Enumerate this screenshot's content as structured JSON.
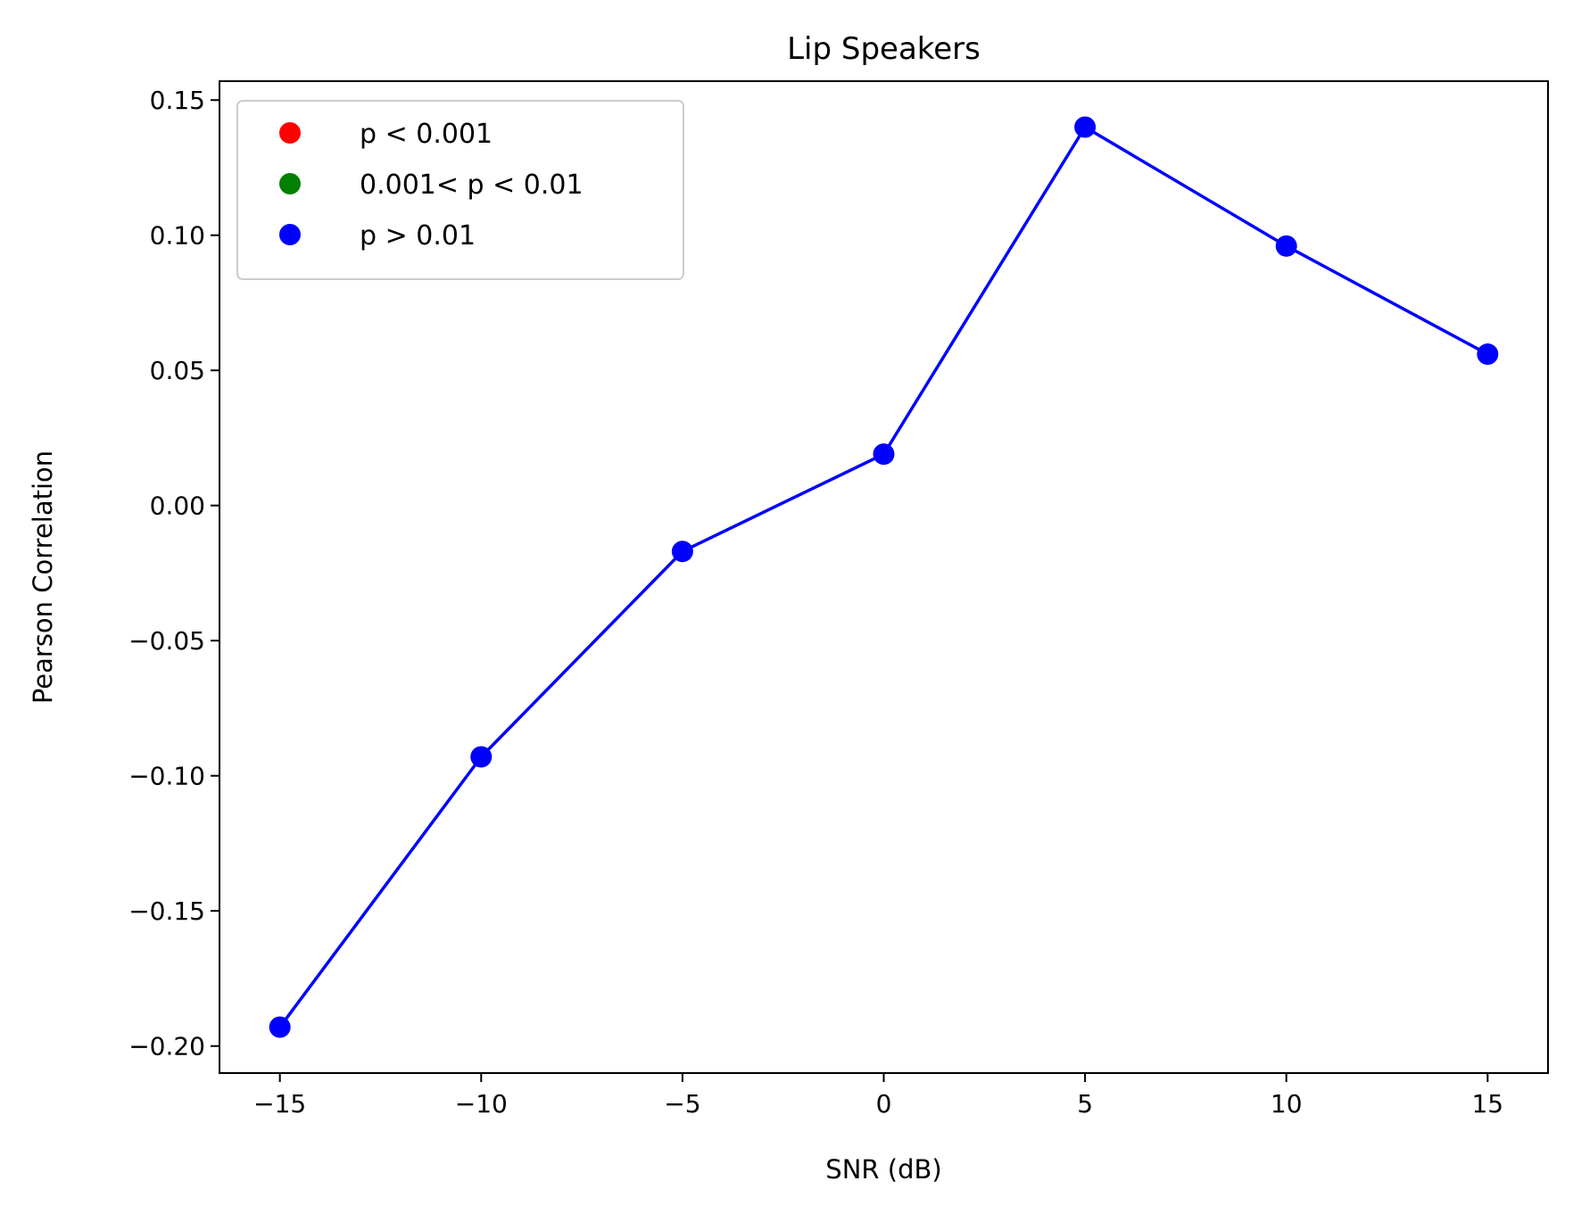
{
  "chart_data": {
    "type": "line",
    "title": "Lip Speakers",
    "xlabel": "SNR (dB)",
    "ylabel": "Pearson Correlation",
    "xlim": [
      -16.5,
      16.5
    ],
    "ylim": [
      -0.21,
      0.157
    ],
    "x_ticks": [
      -15,
      -10,
      -5,
      0,
      5,
      10,
      15
    ],
    "x_tick_labels": [
      "−15",
      "−10",
      "−5",
      "0",
      "5",
      "10",
      "15"
    ],
    "y_ticks": [
      0.15,
      0.1,
      0.05,
      0.0,
      -0.05,
      -0.1,
      -0.15,
      -0.2
    ],
    "y_tick_labels": [
      "0.15",
      "0.10",
      "0.05",
      "0.00",
      "−0.05",
      "−0.10",
      "−0.15",
      "−0.20"
    ],
    "grid": false,
    "legend_position": "top-left",
    "legend": [
      {
        "label": "p < 0.001",
        "color": "#ff0000"
      },
      {
        "label": "0.001< p < 0.01",
        "color": "#008000"
      },
      {
        "label": "p > 0.01",
        "color": "#0000ff"
      }
    ],
    "series": [
      {
        "color": "#0000ff",
        "x": [
          -15,
          -10,
          -5,
          0,
          5,
          10,
          15
        ],
        "y": [
          -0.193,
          -0.093,
          -0.017,
          0.019,
          0.14,
          0.096,
          0.056
        ]
      }
    ]
  }
}
